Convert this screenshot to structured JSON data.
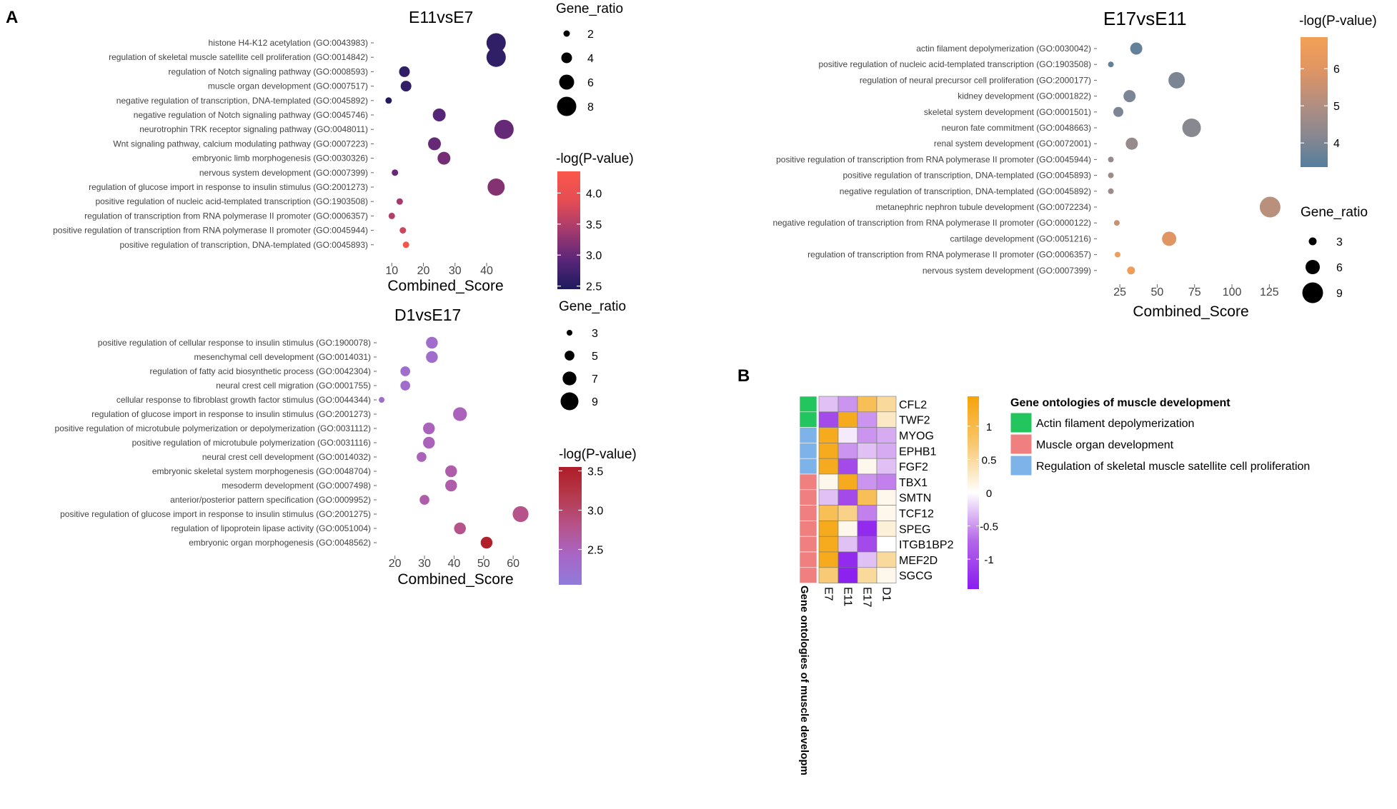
{
  "panel_labels": {
    "a": "A",
    "b": "B"
  },
  "chart_data": [
    {
      "id": "e11",
      "type": "scatter",
      "title": "E11vsE7",
      "xlabel": "Combined_Score",
      "ylabel": "",
      "xlim": [
        7,
        47
      ],
      "xticks": [
        10,
        20,
        30,
        40
      ],
      "terms": [
        "histone H4-K12 acetylation (GO:0043983)",
        "regulation of skeletal muscle satellite cell proliferation (GO:0014842)",
        "regulation of Notch signaling pathway (GO:0008593)",
        "muscle organ development (GO:0007517)",
        "negative regulation of transcription, DNA-templated (GO:0045892)",
        "negative regulation of Notch signaling pathway (GO:0045746)",
        "neurotrophin TRK receptor signaling pathway (GO:0048011)",
        "Wnt signaling pathway, calcium modulating pathway (GO:0007223)",
        "embryonic limb morphogenesis (GO:0030326)",
        "nervous system development (GO:0007399)",
        "regulation of glucose import in response to insulin stimulus (GO:2001273)",
        "positive regulation of nucleic acid-templated transcription (GO:1903508)",
        "regulation of transcription from RNA polymerase II promoter (GO:0006357)",
        "positive regulation of transcription from RNA polymerase II promoter (GO:0045944)",
        "positive regulation of transcription, DNA-templated (GO:0045893)"
      ],
      "combined_score": [
        43,
        43,
        14,
        14.5,
        9,
        25,
        45.5,
        23.5,
        26.5,
        11,
        43,
        12.5,
        10,
        13.5,
        14.5
      ],
      "gene_ratio": [
        8,
        8,
        4,
        4,
        2,
        5,
        8,
        5,
        5,
        2,
        7,
        2,
        2,
        2,
        2
      ],
      "neg_log_p": [
        2.6,
        2.6,
        2.6,
        2.6,
        2.5,
        2.9,
        3.0,
        3.0,
        3.1,
        3.0,
        3.2,
        3.4,
        3.5,
        3.7,
        4.2
      ],
      "size_legend": {
        "title": "Gene_ratio",
        "values": [
          2,
          4,
          6,
          8
        ],
        "labels": [
          "2",
          "4",
          "6",
          "8"
        ]
      },
      "color_legend": {
        "title": "-log(P-value)",
        "min": 2.45,
        "max": 4.35,
        "ticks": [
          4.0,
          3.5,
          3.0,
          2.5
        ],
        "labels": [
          "4.0",
          "3.5",
          "3.0",
          "2.5"
        ],
        "colors": [
          "#1d1a5e",
          "#5a2679",
          "#a43a6e",
          "#e54d54",
          "#f9574a"
        ]
      }
    },
    {
      "id": "d1",
      "type": "scatter",
      "title": "D1vsE17",
      "xlabel": "Combined_Score",
      "ylabel": "",
      "xlim": [
        15,
        66
      ],
      "xticks": [
        20,
        30,
        40,
        50,
        60
      ],
      "terms": [
        "positive regulation of cellular response to insulin stimulus (GO:1900078)",
        "mesenchymal cell development (GO:0014031)",
        "regulation of fatty acid biosynthetic process (GO:0042304)",
        "neural crest cell migration (GO:0001755)",
        "cellular response to fibroblast growth factor stimulus (GO:0044344)",
        "regulation of glucose import in response to insulin stimulus (GO:2001273)",
        "positive regulation of microtubule polymerization or depolymerization (GO:0031112)",
        "positive regulation of microtubule polymerization (GO:0031116)",
        "neural crest cell development (GO:0014032)",
        "embryonic skeletal system morphogenesis (GO:0048704)",
        "mesoderm development (GO:0007498)",
        "anterior/posterior pattern specification (GO:0009952)",
        "positive regulation of glucose import in response to insulin stimulus (GO:2001275)",
        "regulation of lipoprotein lipase activity (GO:0051004)",
        "embryonic organ morphogenesis (GO:0048562)"
      ],
      "combined_score": [
        32.5,
        32.5,
        23.5,
        23.5,
        15.5,
        42,
        31.5,
        31.5,
        29,
        39,
        39,
        30,
        62.5,
        42,
        51
      ],
      "gene_ratio": [
        6,
        6,
        5,
        5,
        3,
        7,
        6,
        6,
        5,
        6,
        6,
        5,
        8,
        6,
        6
      ],
      "neg_log_p": [
        2.3,
        2.3,
        2.3,
        2.3,
        2.3,
        2.5,
        2.5,
        2.5,
        2.5,
        2.6,
        2.6,
        2.6,
        2.8,
        2.8,
        3.5
      ],
      "size_legend": {
        "title": "Gene_ratio",
        "values": [
          3,
          5,
          7,
          9
        ],
        "labels": [
          "3",
          "5",
          "7",
          "9"
        ]
      },
      "color_legend": {
        "title": "-log(P-value)",
        "min": 2.05,
        "max": 3.55,
        "ticks": [
          3.5,
          3.0,
          2.5
        ],
        "labels": [
          "3.5",
          "3.0",
          "2.5"
        ],
        "colors": [
          "#8f7bdb",
          "#a866c6",
          "#b6538a",
          "#b53a4e",
          "#b01c26"
        ]
      }
    },
    {
      "id": "e17",
      "type": "scatter",
      "title": "E17vsE11",
      "xlabel": "Combined_Score",
      "ylabel": "",
      "xlim": [
        13,
        132
      ],
      "xticks": [
        25,
        50,
        75,
        100,
        125
      ],
      "terms": [
        "actin filament depolymerization (GO:0030042)",
        "positive regulation of nucleic acid-templated transcription (GO:1903508)",
        "regulation of neural precursor cell proliferation (GO:2000177)",
        "kidney development (GO:0001822)",
        "skeletal system development (GO:0001501)",
        "neuron fate commitment (GO:0048663)",
        "renal system development (GO:0072001)",
        "positive regulation of transcription from RNA polymerase II promoter (GO:0045944)",
        "positive regulation of transcription, DNA-templated (GO:0045893)",
        "negative regulation of transcription, DNA-templated (GO:0045892)",
        "metanephric nephron tubule development (GO:0072234)",
        "negative regulation of transcription from RNA polymerase II promoter (GO:0000122)",
        "cartilage development (GO:0051216)",
        "regulation of transcription from RNA polymerase II promoter (GO:0006357)",
        "nervous system development (GO:0007399)"
      ],
      "combined_score": [
        36,
        19,
        63,
        31.5,
        24,
        73,
        33,
        19,
        19,
        19,
        125.5,
        23,
        58,
        23.5,
        32.5
      ],
      "gene_ratio": [
        5,
        2,
        7,
        5,
        4,
        8,
        5,
        2,
        2,
        2,
        9,
        2,
        6,
        2,
        3
      ],
      "neg_log_p": [
        3.6,
        3.6,
        4.0,
        4.0,
        4.0,
        4.2,
        4.5,
        4.5,
        4.6,
        4.6,
        5.2,
        5.5,
        6.0,
        6.6,
        6.6
      ],
      "size_legend": {
        "title": "Gene_ratio",
        "values": [
          3,
          6,
          9
        ],
        "labels": [
          "3",
          "6",
          "9"
        ]
      },
      "color_legend": {
        "title": "-log(P-value)",
        "min": 3.35,
        "max": 6.85,
        "ticks": [
          6,
          5,
          4
        ],
        "labels": [
          "6",
          "5",
          "4"
        ],
        "colors": [
          "#557e9e",
          "#8a8890",
          "#b48f7f",
          "#e09563",
          "#f3a157"
        ]
      }
    },
    {
      "id": "heatmap",
      "type": "heatmap",
      "title": "",
      "xlabel": "",
      "ylabel": "",
      "columns": [
        "E7",
        "E11",
        "E17",
        "D1"
      ],
      "genes": [
        "CFL2",
        "TWF2",
        "MYOG",
        "EPHB1",
        "FGF2",
        "TBX1",
        "SMTN",
        "TCF12",
        "SPEG",
        "ITGB1BP2",
        "MEF2D",
        "SGCG"
      ],
      "group_index": [
        0,
        0,
        2,
        2,
        2,
        1,
        1,
        1,
        1,
        1,
        1,
        1
      ],
      "values": [
        [
          -0.3,
          -0.5,
          0.9,
          0.5
        ],
        [
          -1.0,
          1.3,
          -0.5,
          0.3
        ],
        [
          1.3,
          -0.1,
          -0.5,
          -0.4
        ],
        [
          1.3,
          -0.5,
          -0.3,
          -0.4
        ],
        [
          1.3,
          -1.0,
          0.1,
          -0.3
        ],
        [
          0.1,
          1.3,
          -0.5,
          -0.6
        ],
        [
          -0.3,
          -1.0,
          0.9,
          0.1
        ],
        [
          0.9,
          0.6,
          -0.6,
          0.1
        ],
        [
          1.3,
          0.1,
          -1.3,
          0.2
        ],
        [
          1.3,
          -0.3,
          -1.0,
          0.0
        ],
        [
          1.3,
          -1.3,
          -0.3,
          0.5
        ],
        [
          0.7,
          -1.4,
          0.5,
          0.1
        ]
      ],
      "group_axis_label": "Gene ontologies of muscle developm",
      "legend": {
        "title": "Gene ontologies of muscle development",
        "items": [
          "Actin filament depolymerization",
          "Muscle organ development",
          "Regulation of skeletal muscle satellite cell proliferation"
        ],
        "colors": [
          "#22c55e",
          "#f08080",
          "#7db3e8"
        ]
      },
      "colorbar": {
        "min": -1.45,
        "max": 1.45,
        "ticks": [
          1,
          0.5,
          0,
          -0.5,
          -1
        ],
        "labels": [
          "1",
          "0.5",
          "0",
          "-0.5",
          "-1"
        ],
        "colors": [
          "#8a1cf0",
          "#b466e8",
          "#ffffff",
          "#f8c870",
          "#f6a30a"
        ]
      }
    }
  ]
}
